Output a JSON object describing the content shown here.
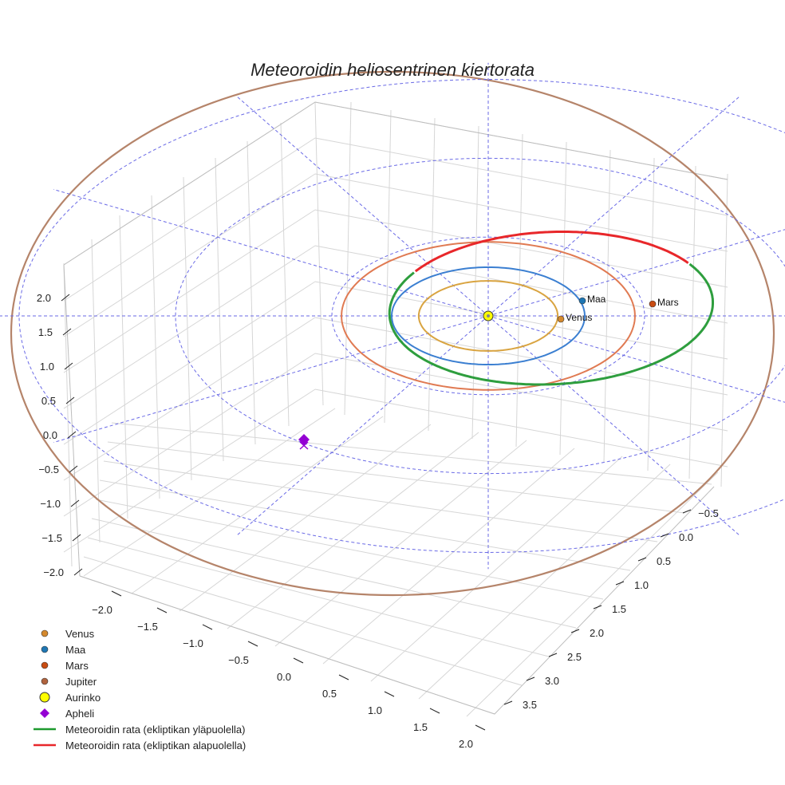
{
  "chart_data": {
    "type": "line",
    "title": "Meteoroidin heliosentrinen kiertorata",
    "xlabel": "",
    "ylabel": "",
    "zlabel": "",
    "x_ticks": [
      "−0.5",
      "0.0",
      "0.5",
      "1.0",
      "1.5",
      "2.0",
      "2.5",
      "3.0",
      "3.5"
    ],
    "y_ticks": [
      "−2.0",
      "−1.5",
      "−1.0",
      "−0.5",
      "0.0",
      "0.5",
      "1.0",
      "1.5",
      "2.0"
    ],
    "z_ticks": [
      "−2.0",
      "−1.5",
      "−1.0",
      "−0.5",
      "0.0",
      "0.5",
      "1.0",
      "1.5",
      "2.0"
    ],
    "xlim": [
      -0.7,
      3.7
    ],
    "ylim": [
      -2.2,
      2.2
    ],
    "zlim": [
      -2.2,
      2.2
    ],
    "planet_orbits": [
      {
        "name": "Venus",
        "radius_au": 0.72,
        "color": "#d9a441"
      },
      {
        "name": "Maa",
        "radius_au": 1.0,
        "color": "#3b7fd1"
      },
      {
        "name": "Mars",
        "radius_au": 1.52,
        "color": "#e07a52"
      },
      {
        "name": "Jupiter",
        "radius_au": 5.2,
        "color": "#b5846a"
      }
    ],
    "planets": [
      {
        "name": "Venus",
        "x": 0.1,
        "y": 0.71,
        "color": "#d4892e"
      },
      {
        "name": "Maa",
        "x": -0.3,
        "y": 0.95,
        "color": "#1f77b4"
      },
      {
        "name": "Mars",
        "x": 0.02,
        "y": 1.52,
        "color": "#c84c12"
      }
    ],
    "sun": {
      "name": "Aurinko",
      "x": 0.0,
      "y": 0.0,
      "color": "#ffff00"
    },
    "aphelion": {
      "name": "Apheli",
      "x": 2.0,
      "y": -1.4,
      "z": 0.0,
      "color": "#9400d3"
    },
    "meteoroid_orbit": {
      "a_au": 1.7,
      "e": 0.42,
      "above_color": "#2e9e3e",
      "below_color": "#e8272a"
    },
    "reference_rings_au": [
      1,
      2,
      3
    ],
    "legend": [
      {
        "label": "Venus",
        "kind": "dot",
        "color": "#d4892e"
      },
      {
        "label": "Maa",
        "kind": "dot",
        "color": "#1f77b4"
      },
      {
        "label": "Mars",
        "kind": "dot",
        "color": "#c84c12"
      },
      {
        "label": "Jupiter",
        "kind": "dot",
        "color": "#b0633e"
      },
      {
        "label": "Aurinko",
        "kind": "sun",
        "color": "#ffff00"
      },
      {
        "label": "Apheli",
        "kind": "diamond",
        "color": "#9400d3"
      },
      {
        "label": "Meteoroidin rata (ekliptikan yläpuolella)",
        "kind": "line",
        "color": "#1e9a2f"
      },
      {
        "label": "Meteoroidin rata (ekliptikan alapuolella)",
        "kind": "line",
        "color": "#e8272a"
      }
    ],
    "legend_position": "bottom-left"
  }
}
